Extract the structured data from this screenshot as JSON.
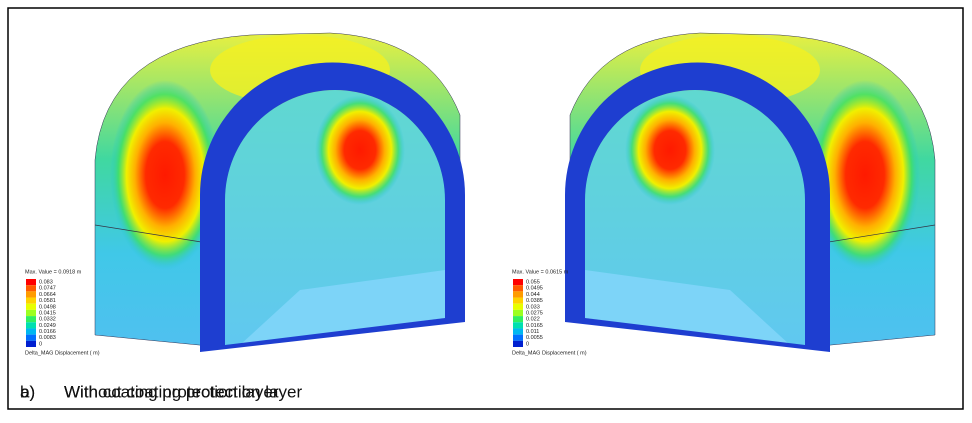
{
  "panels": [
    {
      "caption": {
        "label": "a)",
        "text": "Without coating protection layer"
      },
      "legend": {
        "max": "Max. Value = 0.0918 m",
        "values": [
          "0.083",
          "0.0747",
          "0.0664",
          "0.0581",
          "0.0498",
          "0.0415",
          "0.0332",
          "0.0249",
          "0.0166",
          "0.0083",
          "0"
        ],
        "quantity": "Delta_MAG Displacement ( m)"
      }
    },
    {
      "caption": {
        "label": "b)",
        "text": "With coating protection layer"
      },
      "legend": {
        "max": "Max. Value = 0.0615 m",
        "values": [
          "0.055",
          "0.0495",
          "0.044",
          "0.0385",
          "0.033",
          "0.0275",
          "0.022",
          "0.0165",
          "0.011",
          "0.0055",
          "0"
        ],
        "quantity": "Delta_MAG Displacement ( m)"
      }
    }
  ]
}
